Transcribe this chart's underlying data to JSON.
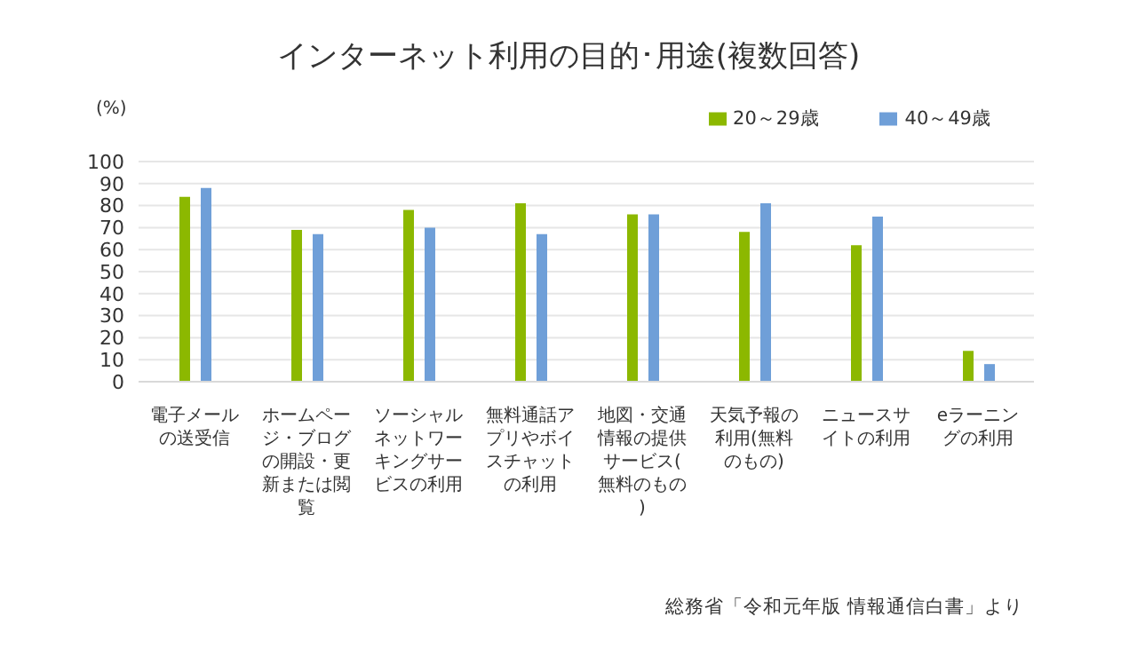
{
  "chart_data": {
    "type": "bar",
    "title": "インターネット利用の目的･用途(複数回答)",
    "ylabel": "(%)",
    "categories": [
      "電子メールの送受信",
      "ホームページ・ブログの開設・更新または閲覧",
      "ソーシャルネットワーキングサービスの利用",
      "無料通話アプリやボイスチャットの利用",
      "地図・交通情報の提供サービス(無料のもの)",
      "天気予報の利用(無料のもの)",
      "ニュースサイトの利用",
      "eラーニングの利用"
    ],
    "series": [
      {
        "name": "20～29歳",
        "color": "#8cb800",
        "values": [
          84,
          69,
          78,
          81,
          76,
          68,
          62,
          14
        ]
      },
      {
        "name": "40～49歳",
        "color": "#6f9fd8",
        "values": [
          88,
          67,
          70,
          67,
          76,
          81,
          75,
          8
        ]
      }
    ],
    "ylim": [
      0,
      100
    ],
    "yticks": [
      0,
      10,
      20,
      30,
      40,
      50,
      60,
      70,
      80,
      90,
      100
    ],
    "grid": "y",
    "legend": "top right",
    "annotations": [
      "総務省「令和元年版 情報通信白書」より"
    ]
  }
}
